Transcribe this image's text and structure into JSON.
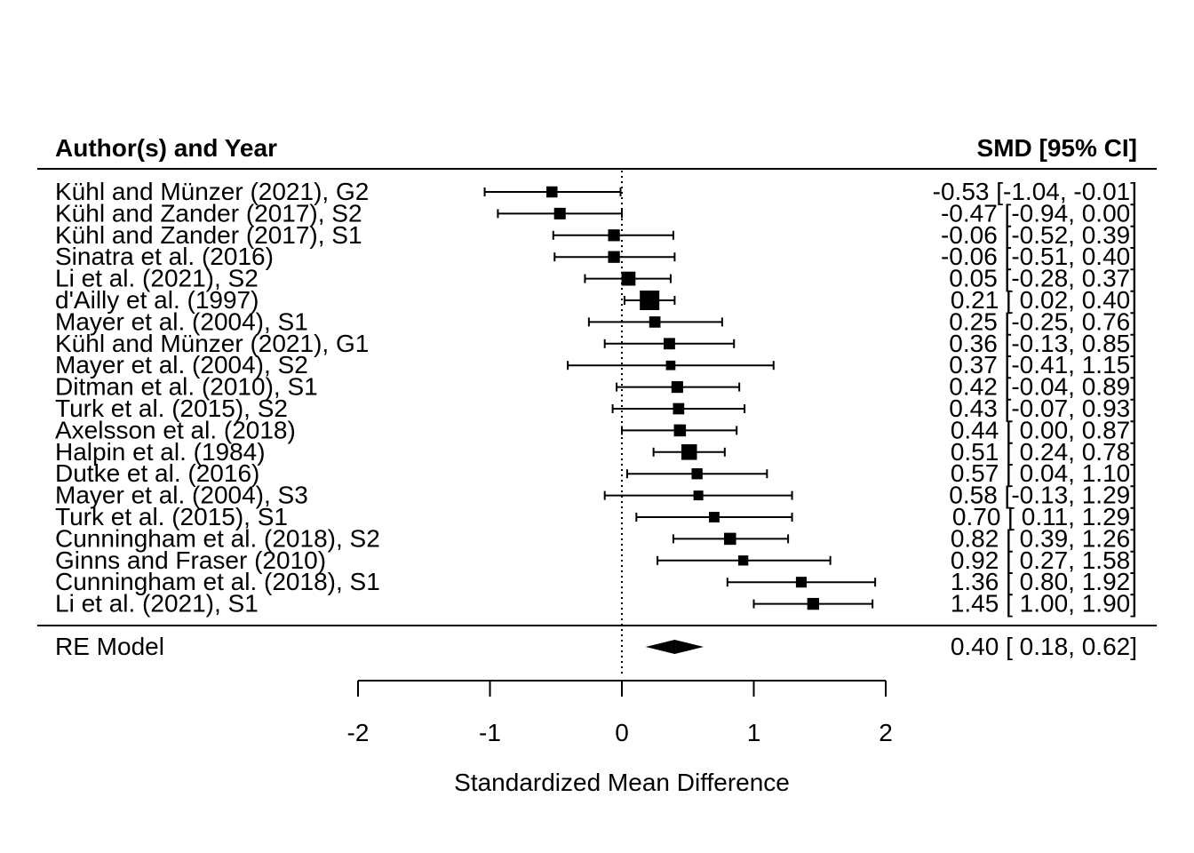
{
  "chart_data": {
    "type": "forest",
    "header_left": "Author(s) and Year",
    "header_right": "SMD [95% CI]",
    "xlabel": "Standardized Mean Difference",
    "xlim": [
      -2,
      2
    ],
    "xticks": [
      -2,
      -1,
      0,
      1,
      2
    ],
    "reference_line": 0,
    "studies": [
      {
        "label": "Kühl and Münzer (2021), G2",
        "est": -0.53,
        "lo": -1.04,
        "hi": -0.01,
        "ci_text": "-0.53 [-1.04, -0.01]"
      },
      {
        "label": "Kühl and Zander (2017), S2",
        "est": -0.47,
        "lo": -0.94,
        "hi": 0.0,
        "ci_text": "-0.47 [-0.94,  0.00]"
      },
      {
        "label": "Kühl and Zander (2017), S1",
        "est": -0.06,
        "lo": -0.52,
        "hi": 0.39,
        "ci_text": "-0.06 [-0.52,  0.39]"
      },
      {
        "label": "Sinatra et al. (2016)",
        "est": -0.06,
        "lo": -0.51,
        "hi": 0.4,
        "ci_text": "-0.06 [-0.51,  0.40]"
      },
      {
        "label": "Li et al. (2021), S2",
        "est": 0.05,
        "lo": -0.28,
        "hi": 0.37,
        "ci_text": "0.05 [-0.28,  0.37]"
      },
      {
        "label": "d'Ailly et al. (1997)",
        "est": 0.21,
        "lo": 0.02,
        "hi": 0.4,
        "ci_text": "0.21 [ 0.02,  0.40]"
      },
      {
        "label": "Mayer et al. (2004), S1",
        "est": 0.25,
        "lo": -0.25,
        "hi": 0.76,
        "ci_text": "0.25 [-0.25,  0.76]"
      },
      {
        "label": "Kühl and Münzer (2021), G1",
        "est": 0.36,
        "lo": -0.13,
        "hi": 0.85,
        "ci_text": "0.36 [-0.13,  0.85]"
      },
      {
        "label": "Mayer et al. (2004), S2",
        "est": 0.37,
        "lo": -0.41,
        "hi": 1.15,
        "ci_text": "0.37 [-0.41,  1.15]"
      },
      {
        "label": "Ditman et al. (2010), S1",
        "est": 0.42,
        "lo": -0.04,
        "hi": 0.89,
        "ci_text": "0.42 [-0.04,  0.89]"
      },
      {
        "label": "Turk et al. (2015), S2",
        "est": 0.43,
        "lo": -0.07,
        "hi": 0.93,
        "ci_text": "0.43 [-0.07,  0.93]"
      },
      {
        "label": "Axelsson et al. (2018)",
        "est": 0.44,
        "lo": 0.0,
        "hi": 0.87,
        "ci_text": "0.44 [ 0.00,  0.87]"
      },
      {
        "label": "Halpin et al. (1984)",
        "est": 0.51,
        "lo": 0.24,
        "hi": 0.78,
        "ci_text": "0.51 [ 0.24,  0.78]"
      },
      {
        "label": "Dutke et al. (2016)",
        "est": 0.57,
        "lo": 0.04,
        "hi": 1.1,
        "ci_text": "0.57 [ 0.04,  1.10]"
      },
      {
        "label": "Mayer et al. (2004), S3",
        "est": 0.58,
        "lo": -0.13,
        "hi": 1.29,
        "ci_text": "0.58 [-0.13,  1.29]"
      },
      {
        "label": "Turk et al. (2015), S1",
        "est": 0.7,
        "lo": 0.11,
        "hi": 1.29,
        "ci_text": "0.70 [ 0.11,  1.29]"
      },
      {
        "label": "Cunningham et al. (2018), S2",
        "est": 0.82,
        "lo": 0.39,
        "hi": 1.26,
        "ci_text": "0.82 [ 0.39,  1.26]"
      },
      {
        "label": "Ginns and Fraser (2010)",
        "est": 0.92,
        "lo": 0.27,
        "hi": 1.58,
        "ci_text": "0.92 [ 0.27,  1.58]"
      },
      {
        "label": "Cunningham et al. (2018), S1",
        "est": 1.36,
        "lo": 0.8,
        "hi": 1.92,
        "ci_text": "1.36 [ 0.80,  1.92]"
      },
      {
        "label": "Li et al. (2021), S1",
        "est": 1.45,
        "lo": 1.0,
        "hi": 1.9,
        "ci_text": "1.45 [ 1.00,  1.90]"
      }
    ],
    "summary": {
      "label": "RE Model",
      "est": 0.4,
      "lo": 0.18,
      "hi": 0.62,
      "ci_text": "0.40 [ 0.18,  0.62]"
    }
  }
}
